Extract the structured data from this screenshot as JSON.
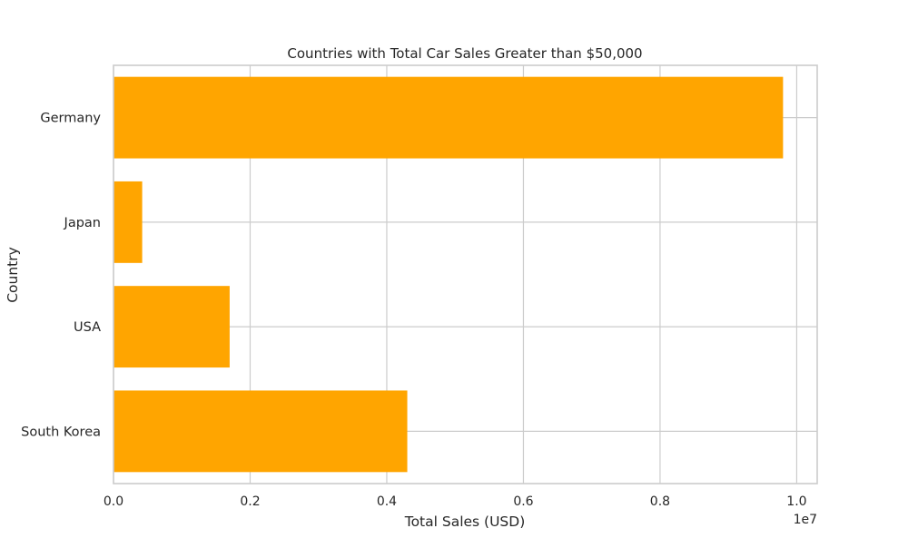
{
  "chart_data": {
    "type": "bar",
    "orientation": "horizontal",
    "title": "Countries with Total Car Sales Greater than $50,000",
    "xlabel": "Total Sales (USD)",
    "ylabel": "Country",
    "x_scale_label": "1e7",
    "x_scale_factor": 10000000,
    "xlim": [
      0,
      10300000
    ],
    "x_ticks": [
      0,
      2000000,
      4000000,
      6000000,
      8000000,
      10000000
    ],
    "x_tick_labels": [
      "0.0",
      "0.2",
      "0.4",
      "0.6",
      "0.8",
      "1.0"
    ],
    "categories": [
      "Germany",
      "Japan",
      "USA",
      "South Korea"
    ],
    "values": [
      9800000,
      420000,
      1700000,
      4300000
    ],
    "grid": true,
    "legend": "none",
    "colors": {
      "bar": "#ffa500",
      "grid": "#cccccc",
      "axes_edge": "#cccccc",
      "text": "#262626"
    }
  }
}
